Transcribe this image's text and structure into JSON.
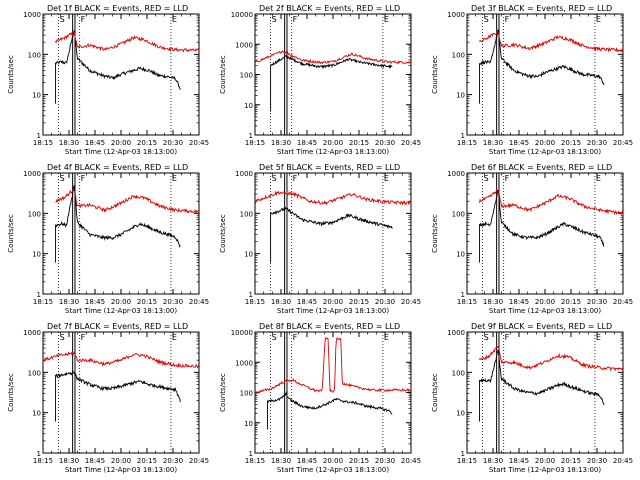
{
  "figure": {
    "xlabel": "Start Time (12-Apr-03 18:13:00)",
    "ylabel": "Counts/sec",
    "x_tick_labels": [
      "18:15",
      "18:30",
      "18:45",
      "20:00",
      "20:15",
      "20:30",
      "20:45"
    ],
    "y_tick_labels": [
      "1",
      "10",
      "100",
      "1000",
      "10000"
    ],
    "marker_labels": [
      "S",
      "F",
      "E"
    ],
    "colors": {
      "events": "#000000",
      "lld": "#e00000",
      "axes": "#000000"
    }
  },
  "chart_data": [
    {
      "type": "line",
      "title": "Det 1f BLACK = Events, RED = LLD",
      "ylim": [
        1,
        1000
      ],
      "series": [
        {
          "name": "Events",
          "color": "#000000",
          "knots": [
            [
              0.08,
              60
            ],
            [
              0.12,
              65
            ],
            [
              0.15,
              60
            ],
            [
              0.2,
              400
            ],
            [
              0.22,
              80
            ],
            [
              0.3,
              40
            ],
            [
              0.38,
              30
            ],
            [
              0.45,
              26
            ],
            [
              0.5,
              32
            ],
            [
              0.58,
              40
            ],
            [
              0.62,
              45
            ],
            [
              0.68,
              40
            ],
            [
              0.74,
              30
            ],
            [
              0.8,
              28
            ],
            [
              0.85,
              25
            ],
            [
              0.88,
              14
            ]
          ]
        },
        {
          "name": "LLD",
          "color": "#e00000",
          "knots": [
            [
              0.08,
              200
            ],
            [
              0.14,
              260
            ],
            [
              0.2,
              350
            ],
            [
              0.22,
              150
            ],
            [
              0.3,
              170
            ],
            [
              0.4,
              130
            ],
            [
              0.5,
              180
            ],
            [
              0.58,
              260
            ],
            [
              0.65,
              230
            ],
            [
              0.75,
              150
            ],
            [
              0.85,
              130
            ],
            [
              1.0,
              125
            ]
          ]
        }
      ]
    },
    {
      "type": "line",
      "title": "Det 2f BLACK = Events, RED = LLD",
      "ylim": [
        1,
        10000
      ],
      "series": [
        {
          "name": "Events",
          "color": "#000000",
          "knots": [
            [
              0.1,
              200
            ],
            [
              0.2,
              400
            ],
            [
              0.3,
              230
            ],
            [
              0.42,
              180
            ],
            [
              0.5,
              200
            ],
            [
              0.6,
              320
            ],
            [
              0.68,
              250
            ],
            [
              0.8,
              200
            ],
            [
              0.88,
              180
            ]
          ]
        },
        {
          "name": "LLD",
          "color": "#e00000",
          "knots": [
            [
              0.0,
              250
            ],
            [
              0.18,
              600
            ],
            [
              0.3,
              300
            ],
            [
              0.42,
              250
            ],
            [
              0.5,
              270
            ],
            [
              0.62,
              480
            ],
            [
              0.72,
              330
            ],
            [
              0.85,
              260
            ],
            [
              1.0,
              250
            ]
          ]
        }
      ]
    },
    {
      "type": "line",
      "title": "Det 3f BLACK = Events, RED = LLD",
      "ylim": [
        1,
        1000
      ],
      "series": [
        {
          "name": "Events",
          "color": "#000000",
          "knots": [
            [
              0.08,
              60
            ],
            [
              0.12,
              65
            ],
            [
              0.15,
              60
            ],
            [
              0.2,
              400
            ],
            [
              0.22,
              80
            ],
            [
              0.3,
              40
            ],
            [
              0.38,
              30
            ],
            [
              0.45,
              28
            ],
            [
              0.5,
              35
            ],
            [
              0.58,
              45
            ],
            [
              0.62,
              50
            ],
            [
              0.68,
              40
            ],
            [
              0.74,
              32
            ],
            [
              0.8,
              30
            ],
            [
              0.85,
              28
            ],
            [
              0.88,
              18
            ]
          ]
        },
        {
          "name": "LLD",
          "color": "#e00000",
          "knots": [
            [
              0.08,
              200
            ],
            [
              0.14,
              270
            ],
            [
              0.2,
              360
            ],
            [
              0.22,
              160
            ],
            [
              0.3,
              175
            ],
            [
              0.4,
              140
            ],
            [
              0.5,
              190
            ],
            [
              0.58,
              270
            ],
            [
              0.65,
              240
            ],
            [
              0.75,
              160
            ],
            [
              0.85,
              135
            ],
            [
              1.0,
              125
            ]
          ]
        }
      ]
    },
    {
      "type": "line",
      "title": "Det 4f BLACK = Events, RED = LLD",
      "ylim": [
        1,
        1000
      ],
      "series": [
        {
          "name": "Events",
          "color": "#000000",
          "knots": [
            [
              0.08,
              50
            ],
            [
              0.12,
              55
            ],
            [
              0.15,
              50
            ],
            [
              0.2,
              500
            ],
            [
              0.22,
              60
            ],
            [
              0.3,
              30
            ],
            [
              0.38,
              25
            ],
            [
              0.45,
              25
            ],
            [
              0.5,
              30
            ],
            [
              0.58,
              45
            ],
            [
              0.62,
              55
            ],
            [
              0.68,
              45
            ],
            [
              0.74,
              35
            ],
            [
              0.8,
              30
            ],
            [
              0.85,
              26
            ],
            [
              0.88,
              15
            ]
          ]
        },
        {
          "name": "LLD",
          "color": "#e00000",
          "knots": [
            [
              0.08,
              200
            ],
            [
              0.14,
              250
            ],
            [
              0.2,
              400
            ],
            [
              0.22,
              150
            ],
            [
              0.3,
              160
            ],
            [
              0.4,
              120
            ],
            [
              0.5,
              180
            ],
            [
              0.58,
              270
            ],
            [
              0.65,
              240
            ],
            [
              0.75,
              150
            ],
            [
              0.85,
              120
            ],
            [
              1.0,
              110
            ]
          ]
        }
      ]
    },
    {
      "type": "line",
      "title": "Det 5f BLACK = Events, RED = LLD",
      "ylim": [
        1,
        1000
      ],
      "series": [
        {
          "name": "Events",
          "color": "#000000",
          "knots": [
            [
              0.1,
              100
            ],
            [
              0.2,
              130
            ],
            [
              0.3,
              70
            ],
            [
              0.42,
              55
            ],
            [
              0.5,
              60
            ],
            [
              0.6,
              90
            ],
            [
              0.68,
              70
            ],
            [
              0.78,
              55
            ],
            [
              0.88,
              45
            ]
          ]
        },
        {
          "name": "LLD",
          "color": "#e00000",
          "knots": [
            [
              0.0,
              200
            ],
            [
              0.15,
              330
            ],
            [
              0.25,
              300
            ],
            [
              0.35,
              200
            ],
            [
              0.45,
              180
            ],
            [
              0.52,
              220
            ],
            [
              0.62,
              300
            ],
            [
              0.72,
              220
            ],
            [
              0.85,
              190
            ],
            [
              1.0,
              180
            ]
          ]
        }
      ]
    },
    {
      "type": "line",
      "title": "Det 6f BLACK = Events, RED = LLD",
      "ylim": [
        1,
        1000
      ],
      "series": [
        {
          "name": "Events",
          "color": "#000000",
          "knots": [
            [
              0.08,
              50
            ],
            [
              0.12,
              55
            ],
            [
              0.15,
              50
            ],
            [
              0.2,
              400
            ],
            [
              0.22,
              60
            ],
            [
              0.3,
              30
            ],
            [
              0.38,
              25
            ],
            [
              0.45,
              25
            ],
            [
              0.5,
              30
            ],
            [
              0.58,
              45
            ],
            [
              0.62,
              55
            ],
            [
              0.68,
              45
            ],
            [
              0.74,
              35
            ],
            [
              0.8,
              30
            ],
            [
              0.85,
              26
            ],
            [
              0.88,
              15
            ]
          ]
        },
        {
          "name": "LLD",
          "color": "#e00000",
          "knots": [
            [
              0.08,
              200
            ],
            [
              0.14,
              250
            ],
            [
              0.2,
              380
            ],
            [
              0.22,
              150
            ],
            [
              0.3,
              160
            ],
            [
              0.4,
              120
            ],
            [
              0.5,
              180
            ],
            [
              0.58,
              270
            ],
            [
              0.65,
              240
            ],
            [
              0.75,
              150
            ],
            [
              0.85,
              120
            ],
            [
              1.0,
              100
            ]
          ]
        }
      ]
    },
    {
      "type": "line",
      "title": "Det 7f BLACK = Events, RED = LLD",
      "ylim": [
        1,
        1000
      ],
      "series": [
        {
          "name": "Events",
          "color": "#000000",
          "knots": [
            [
              0.08,
              80
            ],
            [
              0.14,
              90
            ],
            [
              0.2,
              100
            ],
            [
              0.22,
              70
            ],
            [
              0.3,
              50
            ],
            [
              0.38,
              40
            ],
            [
              0.45,
              40
            ],
            [
              0.5,
              45
            ],
            [
              0.58,
              55
            ],
            [
              0.62,
              60
            ],
            [
              0.68,
              50
            ],
            [
              0.74,
              45
            ],
            [
              0.8,
              40
            ],
            [
              0.85,
              38
            ],
            [
              0.88,
              20
            ]
          ]
        },
        {
          "name": "LLD",
          "color": "#e00000",
          "knots": [
            [
              0.0,
              200
            ],
            [
              0.1,
              260
            ],
            [
              0.2,
              300
            ],
            [
              0.22,
              200
            ],
            [
              0.3,
              200
            ],
            [
              0.4,
              160
            ],
            [
              0.5,
              200
            ],
            [
              0.58,
              280
            ],
            [
              0.65,
              260
            ],
            [
              0.75,
              180
            ],
            [
              0.85,
              150
            ],
            [
              1.0,
              140
            ]
          ]
        }
      ]
    },
    {
      "type": "line",
      "title": "Det 8f BLACK = Events, RED = LLD",
      "ylim": [
        1,
        10000
      ],
      "series": [
        {
          "name": "Events",
          "color": "#000000",
          "knots": [
            [
              0.08,
              50
            ],
            [
              0.16,
              60
            ],
            [
              0.2,
              90
            ],
            [
              0.22,
              60
            ],
            [
              0.3,
              35
            ],
            [
              0.38,
              30
            ],
            [
              0.45,
              40
            ],
            [
              0.52,
              60
            ],
            [
              0.58,
              50
            ],
            [
              0.65,
              45
            ],
            [
              0.72,
              35
            ],
            [
              0.8,
              30
            ],
            [
              0.86,
              25
            ],
            [
              0.88,
              20
            ]
          ]
        },
        {
          "name": "LLD",
          "color": "#e00000",
          "knots": [
            [
              0.0,
              100
            ],
            [
              0.1,
              130
            ],
            [
              0.18,
              220
            ],
            [
              0.24,
              260
            ],
            [
              0.3,
              180
            ],
            [
              0.38,
              120
            ],
            [
              0.43,
              110
            ],
            [
              0.45,
              6000
            ],
            [
              0.47,
              6000
            ],
            [
              0.48,
              110
            ],
            [
              0.51,
              110
            ],
            [
              0.52,
              6000
            ],
            [
              0.55,
              6000
            ],
            [
              0.56,
              200
            ],
            [
              0.65,
              150
            ],
            [
              0.75,
              120
            ],
            [
              0.85,
              120
            ],
            [
              1.0,
              120
            ]
          ]
        }
      ]
    },
    {
      "type": "line",
      "title": "Det 9f BLACK = Events, RED = LLD",
      "ylim": [
        1,
        1000
      ],
      "series": [
        {
          "name": "Events",
          "color": "#000000",
          "knots": [
            [
              0.08,
              60
            ],
            [
              0.12,
              65
            ],
            [
              0.15,
              60
            ],
            [
              0.2,
              350
            ],
            [
              0.22,
              70
            ],
            [
              0.3,
              40
            ],
            [
              0.38,
              32
            ],
            [
              0.45,
              30
            ],
            [
              0.5,
              35
            ],
            [
              0.58,
              48
            ],
            [
              0.62,
              52
            ],
            [
              0.68,
              42
            ],
            [
              0.74,
              35
            ],
            [
              0.8,
              30
            ],
            [
              0.85,
              28
            ],
            [
              0.88,
              16
            ]
          ]
        },
        {
          "name": "LLD",
          "color": "#e00000",
          "knots": [
            [
              0.08,
              200
            ],
            [
              0.14,
              250
            ],
            [
              0.2,
              450
            ],
            [
              0.22,
              180
            ],
            [
              0.3,
              175
            ],
            [
              0.4,
              130
            ],
            [
              0.5,
              180
            ],
            [
              0.58,
              260
            ],
            [
              0.65,
              240
            ],
            [
              0.75,
              150
            ],
            [
              0.85,
              130
            ],
            [
              1.0,
              120
            ]
          ]
        }
      ]
    }
  ]
}
